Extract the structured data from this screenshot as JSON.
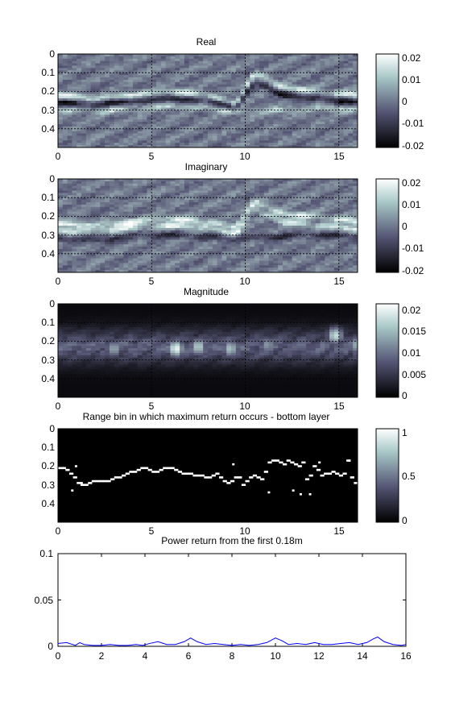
{
  "figure": {
    "panels": [
      {
        "title": "Real",
        "xticks": [
          "0",
          "5",
          "10",
          "15"
        ],
        "yticks": [
          "0",
          "0.1",
          "0.2",
          "0.3",
          "0.4"
        ],
        "colorbar_ticks": [
          "0.02",
          "0.01",
          "0",
          "-0.01",
          "-0.02"
        ]
      },
      {
        "title": "Imaginary",
        "xticks": [
          "0",
          "5",
          "10",
          "15"
        ],
        "yticks": [
          "0",
          "0.1",
          "0.2",
          "0.3",
          "0.4"
        ],
        "colorbar_ticks": [
          "0.02",
          "0.01",
          "0",
          "-0.01",
          "-0.02"
        ]
      },
      {
        "title": "Magnitude",
        "xticks": [
          "0",
          "5",
          "10",
          "15"
        ],
        "yticks": [
          "0",
          "0.1",
          "0.2",
          "0.3",
          "0.4"
        ],
        "colorbar_ticks": [
          "0.02",
          "0.015",
          "0.01",
          "0.005",
          "0"
        ]
      },
      {
        "title": "Range bin in which maximum return occurs - bottom layer",
        "xticks": [
          "0",
          "5",
          "10",
          "15"
        ],
        "yticks": [
          "0",
          "0.1",
          "0.2",
          "0.3",
          "0.4"
        ],
        "colorbar_ticks": [
          "1",
          "0.5",
          "0"
        ]
      }
    ],
    "line_panel": {
      "title": "Power return from the first 0.18m",
      "xticks": [
        "0",
        "2",
        "4",
        "6",
        "8",
        "10",
        "12",
        "14",
        "16"
      ],
      "yticks": [
        "0.1",
        "0.05",
        "0"
      ]
    }
  },
  "chart_data": [
    {
      "type": "heatmap",
      "title": "Real",
      "xlim": [
        0,
        16
      ],
      "ylim": [
        0,
        0.5
      ],
      "y_reversed": true,
      "colormap": "bone",
      "clim": [
        -0.02,
        0.02
      ],
      "grid": true,
      "colorbar": "right",
      "layers": [
        {
          "x": [
            0,
            2,
            4,
            6,
            8,
            9.5,
            10.5,
            12,
            14,
            16
          ],
          "depth": [
            0.22,
            0.24,
            0.22,
            0.2,
            0.22,
            0.27,
            0.1,
            0.18,
            0.2,
            0.22
          ],
          "polarity": 1,
          "amplitude": 0.017
        },
        {
          "x": [
            0,
            2,
            4,
            6,
            8,
            9.5,
            10.5,
            12,
            14,
            16
          ],
          "depth": [
            0.26,
            0.27,
            0.25,
            0.24,
            0.25,
            0.29,
            0.15,
            0.22,
            0.24,
            0.26
          ],
          "polarity": -1,
          "amplitude": 0.017
        },
        {
          "x": [
            0,
            2,
            4,
            6,
            8,
            10,
            12,
            14,
            16
          ],
          "depth": [
            0.3,
            0.31,
            0.29,
            0.28,
            0.29,
            0.31,
            0.3,
            0.29,
            0.3
          ],
          "polarity": 1,
          "amplitude": 0.012
        }
      ]
    },
    {
      "type": "heatmap",
      "title": "Imaginary",
      "xlim": [
        0,
        16
      ],
      "ylim": [
        0,
        0.5
      ],
      "y_reversed": true,
      "colormap": "bone",
      "clim": [
        -0.02,
        0.02
      ],
      "grid": true,
      "colorbar": "right",
      "layers": [
        {
          "x": [
            0,
            2,
            4,
            6,
            8,
            9.5,
            10.5,
            12,
            14,
            16
          ],
          "depth": [
            0.24,
            0.25,
            0.23,
            0.21,
            0.23,
            0.26,
            0.12,
            0.19,
            0.2,
            0.23
          ],
          "polarity": 1,
          "amplitude": 0.018
        },
        {
          "x": [
            0,
            2,
            4,
            6,
            8,
            9.5,
            10.5,
            12,
            14,
            16
          ],
          "depth": [
            0.28,
            0.28,
            0.26,
            0.25,
            0.26,
            0.3,
            0.16,
            0.23,
            0.25,
            0.27
          ],
          "polarity": 1,
          "amplitude": 0.016
        },
        {
          "x": [
            0,
            2,
            4,
            6,
            8,
            10,
            12,
            14,
            16
          ],
          "depth": [
            0.32,
            0.33,
            0.31,
            0.3,
            0.31,
            0.32,
            0.31,
            0.3,
            0.31
          ],
          "polarity": -1,
          "amplitude": 0.012
        }
      ]
    },
    {
      "type": "heatmap",
      "title": "Magnitude",
      "xlim": [
        0,
        16
      ],
      "ylim": [
        0,
        0.5
      ],
      "y_reversed": true,
      "colormap": "bone",
      "clim": [
        0,
        0.021
      ],
      "grid": true,
      "colorbar": "right",
      "bright_spots": [
        {
          "x": 3.0,
          "depth": 0.24,
          "value": 0.014
        },
        {
          "x": 6.3,
          "depth": 0.24,
          "value": 0.02
        },
        {
          "x": 7.5,
          "depth": 0.23,
          "value": 0.017
        },
        {
          "x": 9.2,
          "depth": 0.24,
          "value": 0.016
        },
        {
          "x": 11.2,
          "depth": 0.22,
          "value": 0.013
        },
        {
          "x": 14.8,
          "depth": 0.17,
          "value": 0.018
        },
        {
          "x": 15.9,
          "depth": 0.22,
          "value": 0.014
        }
      ]
    },
    {
      "type": "heatmap",
      "title": "Range bin in which maximum return occurs - bottom layer",
      "xlim": [
        0,
        16
      ],
      "ylim": [
        0,
        0.5
      ],
      "y_reversed": true,
      "colormap": "bone",
      "clim": [
        0,
        1
      ],
      "grid": false,
      "colorbar": "right",
      "x": [
        0,
        0.2,
        0.4,
        0.6,
        0.8,
        1,
        1.2,
        1.4,
        1.6,
        1.8,
        2,
        2.2,
        2.4,
        2.6,
        2.8,
        3,
        3.2,
        3.4,
        3.6,
        3.8,
        4,
        4.2,
        4.4,
        4.6,
        4.8,
        5,
        5.2,
        5.4,
        5.6,
        5.8,
        6,
        6.2,
        6.4,
        6.6,
        6.8,
        7,
        7.2,
        7.4,
        7.6,
        7.8,
        8,
        8.2,
        8.4,
        8.6,
        8.8,
        9,
        9.2,
        9.4,
        9.6,
        9.8,
        10,
        10.2,
        10.4,
        10.6,
        10.8,
        11,
        11.2,
        11.4,
        11.6,
        11.8,
        12,
        12.2,
        12.4,
        12.6,
        12.8,
        13,
        13.2,
        13.4,
        13.6,
        13.8,
        14,
        14.2,
        14.4,
        14.6,
        14.8,
        15,
        15.2,
        15.4,
        15.6,
        15.8
      ],
      "depth": [
        0.21,
        0.21,
        0.22,
        0.24,
        0.26,
        0.29,
        0.3,
        0.3,
        0.29,
        0.28,
        0.28,
        0.28,
        0.28,
        0.28,
        0.27,
        0.26,
        0.26,
        0.25,
        0.24,
        0.23,
        0.23,
        0.22,
        0.21,
        0.21,
        0.22,
        0.23,
        0.23,
        0.22,
        0.21,
        0.21,
        0.21,
        0.22,
        0.23,
        0.24,
        0.24,
        0.24,
        0.25,
        0.25,
        0.25,
        0.26,
        0.26,
        0.25,
        0.24,
        0.26,
        0.28,
        0.29,
        0.28,
        0.26,
        0.26,
        0.3,
        0.28,
        0.26,
        0.25,
        0.26,
        0.27,
        0.23,
        0.18,
        0.17,
        0.17,
        0.18,
        0.19,
        0.17,
        0.18,
        0.19,
        0.2,
        0.18,
        0.27,
        0.25,
        0.2,
        0.22,
        0.25,
        0.24,
        0.24,
        0.23,
        0.24,
        0.25,
        0.24,
        0.17,
        0.26,
        0.29
      ],
      "outliers": [
        {
          "x": 0.7,
          "depth": 0.33
        },
        {
          "x": 0.9,
          "depth": 0.2
        },
        {
          "x": 1.2,
          "depth": 0.29
        },
        {
          "x": 9.3,
          "depth": 0.19
        },
        {
          "x": 11.2,
          "depth": 0.34
        },
        {
          "x": 12.5,
          "depth": 0.33
        },
        {
          "x": 12.9,
          "depth": 0.35
        },
        {
          "x": 13.4,
          "depth": 0.35
        },
        {
          "x": 13.9,
          "depth": 0.18
        },
        {
          "x": 15.5,
          "depth": 0.17
        }
      ]
    },
    {
      "type": "line",
      "title": "Power return from the first 0.18m",
      "xlim": [
        0,
        16
      ],
      "ylim": [
        0,
        0.1
      ],
      "grid": false,
      "color": "#0000ff",
      "x": [
        0,
        0.4,
        0.8,
        1.0,
        1.2,
        1.6,
        2.0,
        2.4,
        2.8,
        3.2,
        3.6,
        3.9,
        4.2,
        4.6,
        5.0,
        5.4,
        5.8,
        6.1,
        6.4,
        6.8,
        7.2,
        7.6,
        8.0,
        8.4,
        8.8,
        9.2,
        9.6,
        10.0,
        10.3,
        10.6,
        11.0,
        11.4,
        11.8,
        12.2,
        12.6,
        13.0,
        13.4,
        13.8,
        14.2,
        14.5,
        14.7,
        15.0,
        15.4,
        15.8,
        16.0
      ],
      "y": [
        0.003,
        0.004,
        0.001,
        0.004,
        0.002,
        0.001,
        0.001,
        0.002,
        0.001,
        0.001,
        0.002,
        0.001,
        0.003,
        0.005,
        0.002,
        0.002,
        0.005,
        0.009,
        0.005,
        0.002,
        0.003,
        0.002,
        0.001,
        0.002,
        0.001,
        0.002,
        0.004,
        0.009,
        0.006,
        0.002,
        0.003,
        0.002,
        0.004,
        0.002,
        0.002,
        0.003,
        0.004,
        0.002,
        0.004,
        0.008,
        0.01,
        0.005,
        0.002,
        0.001,
        0.002
      ]
    }
  ]
}
